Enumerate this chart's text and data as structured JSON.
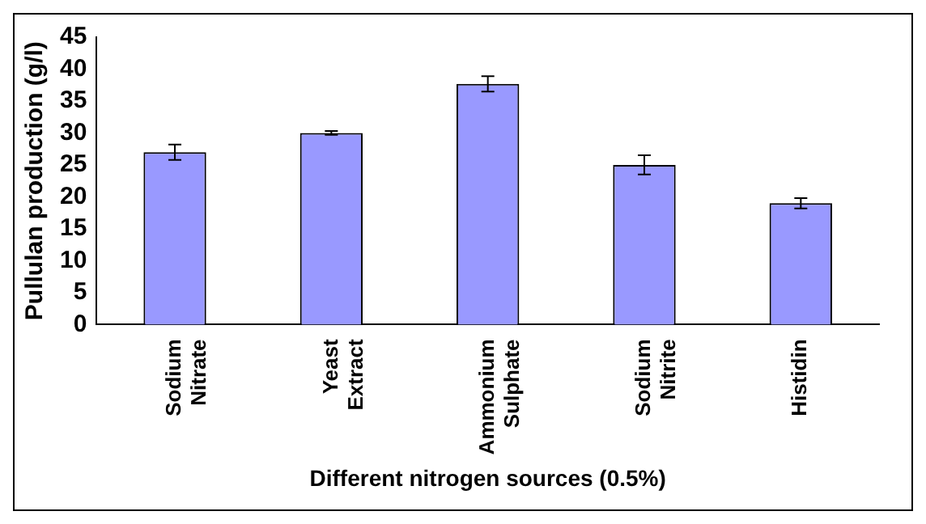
{
  "chart_data": {
    "type": "bar",
    "xlabel": "Different nitrogen sources (0.5%)",
    "ylabel": "Pullulan production (g/l)",
    "categories": [
      "Sodium Nitrate",
      "Yeast Extract",
      "Ammonium Sulphate",
      "Sodium Nitrite",
      "Histidin"
    ],
    "values": [
      27,
      30,
      37.7,
      25,
      19
    ],
    "errors": [
      1.2,
      0.3,
      1.2,
      1.5,
      0.8
    ],
    "color": "#9999ff",
    "ylim": [
      0,
      45
    ],
    "yticks": [
      0,
      5,
      10,
      15,
      20,
      25,
      30,
      35,
      40,
      45
    ],
    "grid": false,
    "legend": false
  }
}
